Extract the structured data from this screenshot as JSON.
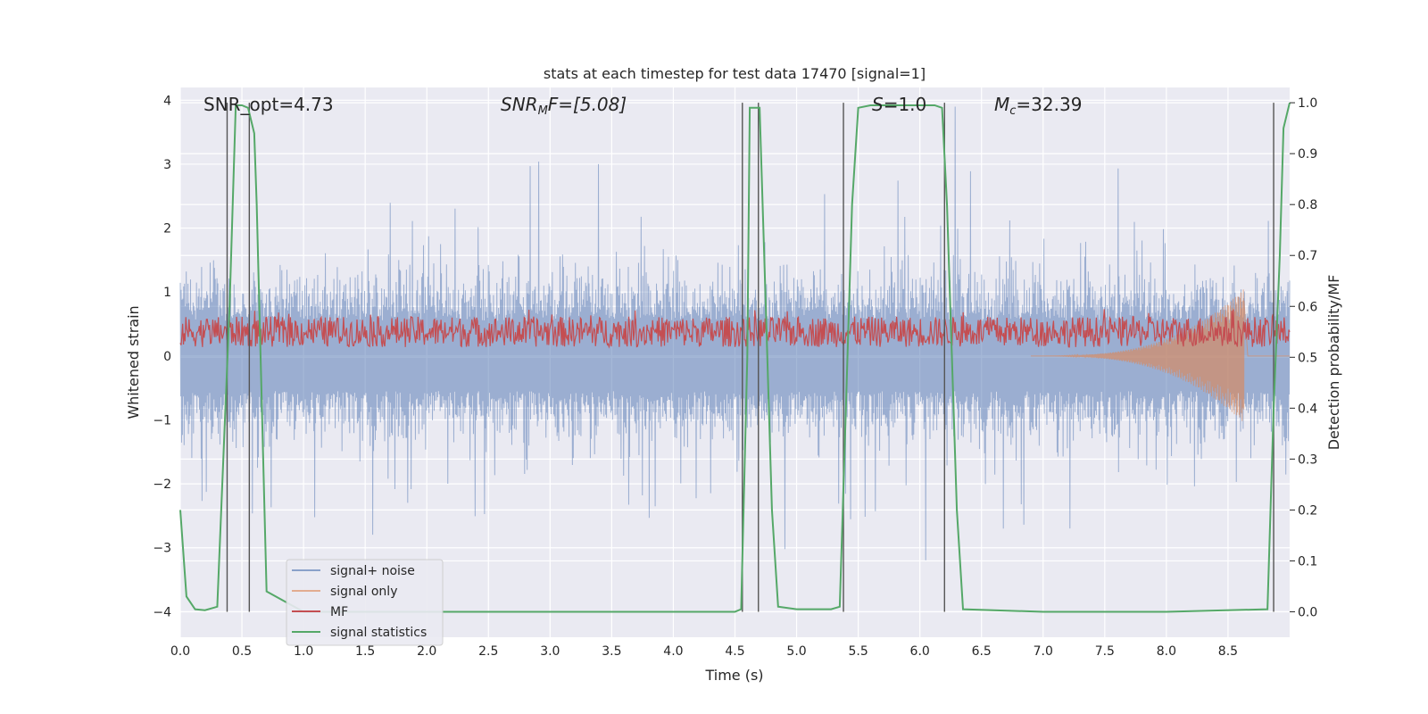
{
  "chart_data": {
    "type": "line",
    "title": "stats at each timestep for test data 17470 [signal=1]",
    "xlabel": "Time (s)",
    "ylabel_left": "Whitened strain",
    "ylabel_right": "Detection probability/MF",
    "xlim": [
      0.0,
      9.0
    ],
    "ylim_left": [
      -4.4,
      4.2
    ],
    "ylim_right": [
      -0.05,
      1.03
    ],
    "x_ticks": [
      "0.0",
      "0.5",
      "1.0",
      "1.5",
      "2.0",
      "2.5",
      "3.0",
      "3.5",
      "4.0",
      "4.5",
      "5.0",
      "5.5",
      "6.0",
      "6.5",
      "7.0",
      "7.5",
      "8.0",
      "8.5"
    ],
    "y_ticks_left": [
      "4",
      "3",
      "2",
      "1",
      "0",
      "−1",
      "−2",
      "−3",
      "−4"
    ],
    "y_ticks_right": [
      "1.0",
      "0.9",
      "0.8",
      "0.7",
      "0.6",
      "0.5",
      "0.4",
      "0.3",
      "0.2",
      "0.1",
      "0.0"
    ],
    "grid": true,
    "legend_position": "lower-left",
    "annotations": {
      "snr_opt": "SNR_opt=4.73",
      "snr_mf_main": "SNR",
      "snr_mf_sub": "M",
      "snr_mf_rest": "F=[5.08]",
      "s_main": "S",
      "s_rest": "=1.0",
      "mc_main": "M",
      "mc_sub": "c",
      "mc_rest": "=32.39"
    },
    "detection_boundaries": [
      0.38,
      0.56,
      4.56,
      4.69,
      5.38,
      6.2,
      8.87
    ],
    "series": [
      {
        "name": "signal+ noise",
        "color": "#4c72b0",
        "axis": "left",
        "description_points": "noise band roughly -1.6..1.5, peaks to about +/-3.5"
      },
      {
        "name": "signal only",
        "color": "#dd8452",
        "axis": "left",
        "chirp_peak_time": 8.63,
        "chirp_peak_amplitude": [
          -1.05,
          1.05
        ]
      },
      {
        "name": "MF",
        "color": "#c44e52",
        "axis": "right",
        "range": [
          0.52,
          0.58
        ]
      },
      {
        "name": "signal statistics",
        "color": "#55a868",
        "axis": "right",
        "x": [
          0.0,
          0.05,
          0.12,
          0.2,
          0.3,
          0.4,
          0.45,
          0.5,
          0.55,
          0.6,
          0.62,
          0.7,
          1.0,
          2.0,
          3.0,
          4.0,
          4.5,
          4.55,
          4.6,
          4.62,
          4.65,
          4.7,
          4.75,
          4.8,
          4.85,
          5.0,
          5.28,
          5.35,
          5.4,
          5.45,
          5.5,
          5.6,
          6.0,
          6.12,
          6.18,
          6.22,
          6.3,
          6.35,
          7.0,
          8.0,
          8.82,
          8.87,
          8.92,
          8.95,
          9.0
        ],
        "y": [
          0.2,
          0.03,
          0.005,
          0.003,
          0.01,
          0.6,
          0.995,
          0.995,
          0.99,
          0.94,
          0.8,
          0.04,
          0.0,
          0.0,
          0.0,
          0.0,
          0.0,
          0.005,
          0.5,
          0.99,
          0.99,
          0.99,
          0.6,
          0.2,
          0.01,
          0.005,
          0.005,
          0.01,
          0.4,
          0.8,
          0.99,
          0.995,
          0.995,
          0.995,
          0.99,
          0.8,
          0.2,
          0.005,
          0.0,
          0.0,
          0.005,
          0.4,
          0.7,
          0.95,
          1.0
        ]
      }
    ]
  }
}
